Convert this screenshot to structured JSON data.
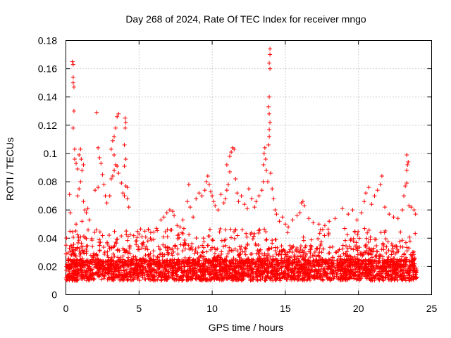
{
  "chart_data": {
    "type": "scatter",
    "title": "Day 268 of 2024, Rate Of TEC Index for receiver mngo",
    "xlabel": "GPS time / hours",
    "ylabel": "ROTI / TECUs",
    "xlim": [
      0,
      25
    ],
    "ylim": [
      0,
      0.18
    ],
    "xticks": [
      0,
      5,
      10,
      15,
      20,
      25
    ],
    "xtick_labels": [
      "0",
      "5",
      "10",
      "15",
      "20",
      "25"
    ],
    "yticks": [
      0,
      0.02,
      0.04,
      0.06,
      0.08,
      0.1,
      0.12,
      0.14,
      0.16,
      0.18
    ],
    "ytick_labels": [
      "0",
      "0.02",
      "0.04",
      "0.06",
      "0.08",
      "0.1",
      "0.12",
      "0.14",
      "0.16",
      "0.18"
    ],
    "grid": true,
    "marker": "+",
    "color": "#ff0000",
    "series": [
      {
        "name": "ROTI",
        "points": [
          [
            0.25,
            0.071
          ],
          [
            0.3,
            0.058
          ],
          [
            0.45,
            0.165
          ],
          [
            0.5,
            0.163
          ],
          [
            0.5,
            0.154
          ],
          [
            0.5,
            0.15
          ],
          [
            0.55,
            0.147
          ],
          [
            0.55,
            0.13
          ],
          [
            0.5,
            0.118
          ],
          [
            0.6,
            0.103
          ],
          [
            0.6,
            0.096
          ],
          [
            0.7,
            0.093
          ],
          [
            0.8,
            0.089
          ],
          [
            0.9,
            0.099
          ],
          [
            1.0,
            0.103
          ],
          [
            1.05,
            0.096
          ],
          [
            1.1,
            0.088
          ],
          [
            1.2,
            0.092
          ],
          [
            1.0,
            0.08
          ],
          [
            0.9,
            0.075
          ],
          [
            0.8,
            0.07
          ],
          [
            1.2,
            0.066
          ],
          [
            1.3,
            0.06
          ],
          [
            1.4,
            0.058
          ],
          [
            1.5,
            0.061
          ],
          [
            1.6,
            0.053
          ],
          [
            0.7,
            0.05
          ],
          [
            1.1,
            0.052
          ],
          [
            2.1,
            0.129
          ],
          [
            2.2,
            0.104
          ],
          [
            2.3,
            0.097
          ],
          [
            2.4,
            0.093
          ],
          [
            2.5,
            0.085
          ],
          [
            2.6,
            0.078
          ],
          [
            2.2,
            0.076
          ],
          [
            2.0,
            0.074
          ],
          [
            2.7,
            0.07
          ],
          [
            2.8,
            0.065
          ],
          [
            3.0,
            0.07
          ],
          [
            3.1,
            0.082
          ],
          [
            3.2,
            0.084
          ],
          [
            3.3,
            0.088
          ],
          [
            3.4,
            0.092
          ],
          [
            3.3,
            0.099
          ],
          [
            3.2,
            0.109
          ],
          [
            3.3,
            0.112
          ],
          [
            3.4,
            0.118
          ],
          [
            3.5,
            0.126
          ],
          [
            3.6,
            0.128
          ],
          [
            3.1,
            0.103
          ],
          [
            3.5,
            0.091
          ],
          [
            3.6,
            0.086
          ],
          [
            3.8,
            0.079
          ],
          [
            3.9,
            0.072
          ],
          [
            4.0,
            0.07
          ],
          [
            4.0,
            0.091
          ],
          [
            4.1,
            0.096
          ],
          [
            4.0,
            0.106
          ],
          [
            4.05,
            0.118
          ],
          [
            4.1,
            0.122
          ],
          [
            4.05,
            0.125
          ],
          [
            4.1,
            0.077
          ],
          [
            4.2,
            0.068
          ],
          [
            4.3,
            0.062
          ],
          [
            4.2,
            0.076
          ],
          [
            5.0,
            0.043
          ],
          [
            5.2,
            0.041
          ],
          [
            5.4,
            0.045
          ],
          [
            5.6,
            0.038
          ],
          [
            5.8,
            0.044
          ],
          [
            6.0,
            0.039
          ],
          [
            6.2,
            0.047
          ],
          [
            6.5,
            0.053
          ],
          [
            6.7,
            0.055
          ],
          [
            6.9,
            0.058
          ],
          [
            7.1,
            0.06
          ],
          [
            7.3,
            0.059
          ],
          [
            7.4,
            0.056
          ],
          [
            7.6,
            0.049
          ],
          [
            7.8,
            0.048
          ],
          [
            8.0,
            0.053
          ],
          [
            8.3,
            0.066
          ],
          [
            8.4,
            0.078
          ],
          [
            8.5,
            0.062
          ],
          [
            8.7,
            0.055
          ],
          [
            8.9,
            0.068
          ],
          [
            9.1,
            0.072
          ],
          [
            9.3,
            0.07
          ],
          [
            9.5,
            0.074
          ],
          [
            9.6,
            0.08
          ],
          [
            9.7,
            0.084
          ],
          [
            9.8,
            0.078
          ],
          [
            9.9,
            0.073
          ],
          [
            10.0,
            0.07
          ],
          [
            10.1,
            0.066
          ],
          [
            10.2,
            0.063
          ],
          [
            10.4,
            0.06
          ],
          [
            10.6,
            0.071
          ],
          [
            10.8,
            0.065
          ],
          [
            10.9,
            0.068
          ],
          [
            11.0,
            0.074
          ],
          [
            11.1,
            0.078
          ],
          [
            11.2,
            0.087
          ],
          [
            11.0,
            0.092
          ],
          [
            11.2,
            0.098
          ],
          [
            11.3,
            0.101
          ],
          [
            11.4,
            0.104
          ],
          [
            11.5,
            0.103
          ],
          [
            11.6,
            0.082
          ],
          [
            11.7,
            0.072
          ],
          [
            11.8,
            0.066
          ],
          [
            12.0,
            0.07
          ],
          [
            12.2,
            0.064
          ],
          [
            12.4,
            0.061
          ],
          [
            12.5,
            0.075
          ],
          [
            12.7,
            0.068
          ],
          [
            12.9,
            0.062
          ],
          [
            13.0,
            0.066
          ],
          [
            13.2,
            0.07
          ],
          [
            13.4,
            0.074
          ],
          [
            13.5,
            0.08
          ],
          [
            13.5,
            0.092
          ],
          [
            13.55,
            0.1
          ],
          [
            13.6,
            0.104
          ],
          [
            13.65,
            0.096
          ],
          [
            13.7,
            0.088
          ],
          [
            13.8,
            0.08
          ],
          [
            13.85,
            0.106
          ],
          [
            13.9,
            0.112
          ],
          [
            13.9,
            0.117
          ],
          [
            13.95,
            0.122
          ],
          [
            13.9,
            0.128
          ],
          [
            13.85,
            0.133
          ],
          [
            13.9,
            0.14
          ],
          [
            13.95,
            0.16
          ],
          [
            13.9,
            0.164
          ],
          [
            13.95,
            0.17
          ],
          [
            13.95,
            0.174
          ],
          [
            14.0,
            0.086
          ],
          [
            14.1,
            0.075
          ],
          [
            14.2,
            0.068
          ],
          [
            14.3,
            0.06
          ],
          [
            14.4,
            0.057
          ],
          [
            14.6,
            0.052
          ],
          [
            14.8,
            0.055
          ],
          [
            15.0,
            0.05
          ],
          [
            15.2,
            0.048
          ],
          [
            15.5,
            0.053
          ],
          [
            15.8,
            0.056
          ],
          [
            16.0,
            0.058
          ],
          [
            16.1,
            0.065
          ],
          [
            16.2,
            0.066
          ],
          [
            16.3,
            0.063
          ],
          [
            16.6,
            0.054
          ],
          [
            16.9,
            0.051
          ],
          [
            17.3,
            0.05
          ],
          [
            17.7,
            0.049
          ],
          [
            18.0,
            0.052
          ],
          [
            18.4,
            0.054
          ],
          [
            18.9,
            0.061
          ],
          [
            19.3,
            0.057
          ],
          [
            19.6,
            0.06
          ],
          [
            19.9,
            0.053
          ],
          [
            20.2,
            0.058
          ],
          [
            20.4,
            0.066
          ],
          [
            20.5,
            0.072
          ],
          [
            20.7,
            0.076
          ],
          [
            20.9,
            0.064
          ],
          [
            21.1,
            0.07
          ],
          [
            21.3,
            0.074
          ],
          [
            21.5,
            0.078
          ],
          [
            21.6,
            0.084
          ],
          [
            21.8,
            0.062
          ],
          [
            22.1,
            0.057
          ],
          [
            22.4,
            0.055
          ],
          [
            22.7,
            0.054
          ],
          [
            23.0,
            0.06
          ],
          [
            23.1,
            0.07
          ],
          [
            23.2,
            0.077
          ],
          [
            23.3,
            0.079
          ],
          [
            23.3,
            0.088
          ],
          [
            23.35,
            0.092
          ],
          [
            23.4,
            0.094
          ],
          [
            23.3,
            0.099
          ],
          [
            23.45,
            0.063
          ],
          [
            23.6,
            0.062
          ],
          [
            23.8,
            0.06
          ],
          [
            23.9,
            0.057
          ]
        ]
      }
    ],
    "dense_band": {
      "x_range": [
        0,
        24
      ],
      "y_floor": 0.006,
      "y_typical_low": 0.01,
      "y_typical_high": 0.035,
      "description": "Dense continuous band of ROTI points throughout the day"
    }
  }
}
